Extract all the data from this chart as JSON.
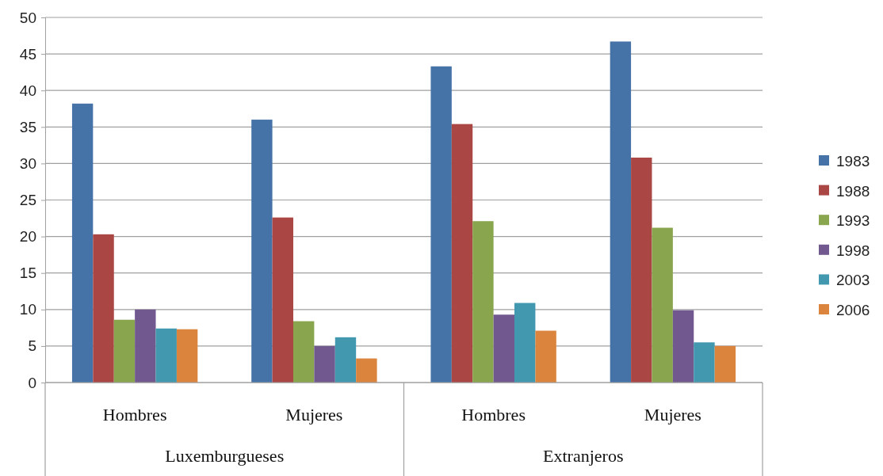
{
  "chart_data": {
    "type": "bar",
    "categories": [
      "Hombres",
      "Mujeres",
      "Hombres",
      "Mujeres"
    ],
    "annotations": [
      "Luxemburgueses",
      "Extranjeros"
    ],
    "series": [
      {
        "name": "1983",
        "color": "#4572a7",
        "values": [
          38.2,
          36.0,
          43.3,
          46.7
        ]
      },
      {
        "name": "1988",
        "color": "#aa4643",
        "values": [
          20.3,
          22.6,
          35.4,
          30.8
        ]
      },
      {
        "name": "1993",
        "color": "#89a54e",
        "values": [
          8.6,
          8.4,
          22.1,
          21.2
        ]
      },
      {
        "name": "1998",
        "color": "#71588f",
        "values": [
          10.0,
          5.0,
          9.3,
          9.9
        ]
      },
      {
        "name": "2003",
        "color": "#4198af",
        "values": [
          7.4,
          6.2,
          10.9,
          5.5
        ]
      },
      {
        "name": "2006",
        "color": "#db843d",
        "values": [
          7.3,
          3.3,
          7.1,
          5.0
        ]
      }
    ],
    "ylim": [
      0,
      50
    ],
    "yticks": [
      0,
      5,
      10,
      15,
      20,
      25,
      30,
      35,
      40,
      45,
      50
    ],
    "grid": "y",
    "legend": "right"
  }
}
